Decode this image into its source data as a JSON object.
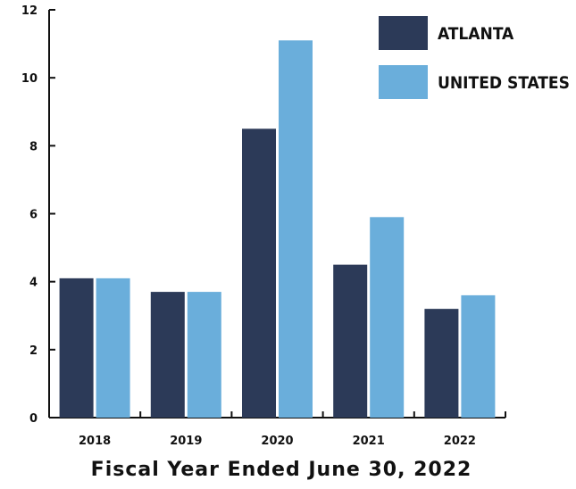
{
  "chart_data": {
    "type": "bar",
    "title": "",
    "xlabel": "Fiscal Year Ended June 30, 2022",
    "ylabel": "",
    "categories": [
      "2018",
      "2019",
      "2020",
      "2021",
      "2022"
    ],
    "series": [
      {
        "name": "ATLANTA",
        "values": [
          4.1,
          3.7,
          8.5,
          4.5,
          3.2
        ],
        "color": "#2c3a58"
      },
      {
        "name": "UNITED STATES",
        "values": [
          4.1,
          3.7,
          11.1,
          5.9,
          3.6
        ],
        "color": "#6aaedb"
      }
    ],
    "ylim": [
      0,
      12
    ],
    "yticks": [
      0,
      2,
      4,
      6,
      8,
      10,
      12
    ],
    "grid": false,
    "legend_position": "top-right"
  }
}
